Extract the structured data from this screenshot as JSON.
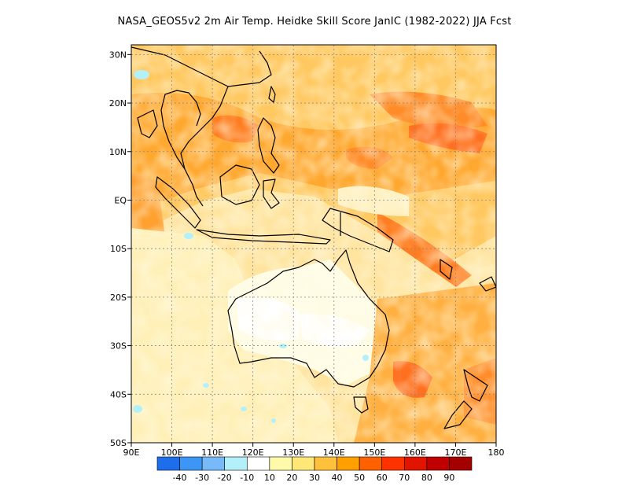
{
  "title": "NASA_GEOS5v2  2m Air Temp. Heidke Skill Score JanIC (1982-2022) JJA Fcst",
  "map": {
    "lon_range": [
      90,
      180
    ],
    "lat_range": [
      -50,
      32
    ],
    "lat_ticks": [
      {
        "value": 30,
        "label": "30N"
      },
      {
        "value": 20,
        "label": "20N"
      },
      {
        "value": 10,
        "label": "10N"
      },
      {
        "value": 0,
        "label": "EQ"
      },
      {
        "value": -10,
        "label": "10S"
      },
      {
        "value": -20,
        "label": "20S"
      },
      {
        "value": -30,
        "label": "30S"
      },
      {
        "value": -40,
        "label": "40S"
      },
      {
        "value": -50,
        "label": "50S"
      }
    ],
    "lon_ticks": [
      {
        "value": 90,
        "label": "90E"
      },
      {
        "value": 100,
        "label": "100E"
      },
      {
        "value": 110,
        "label": "110E"
      },
      {
        "value": 120,
        "label": "120E"
      },
      {
        "value": 130,
        "label": "130E"
      },
      {
        "value": 140,
        "label": "140E"
      },
      {
        "value": 150,
        "label": "150E"
      },
      {
        "value": 160,
        "label": "160E"
      },
      {
        "value": 170,
        "label": "170E"
      },
      {
        "value": 180,
        "label": "180"
      }
    ],
    "gridlines": "dotted",
    "coastlines": "black"
  },
  "colorbar": {
    "labels": [
      "-40",
      "-30",
      "-20",
      "-10",
      "10",
      "20",
      "30",
      "40",
      "50",
      "60",
      "70",
      "80",
      "90"
    ],
    "colors": [
      "#1e6eeb",
      "#3c96f5",
      "#78b9fa",
      "#b4f0fa",
      "#ffffff",
      "#fffaaa",
      "#ffe878",
      "#ffc03c",
      "#ffa000",
      "#ff6000",
      "#ff3200",
      "#e11400",
      "#c00000",
      "#a50000"
    ]
  }
}
